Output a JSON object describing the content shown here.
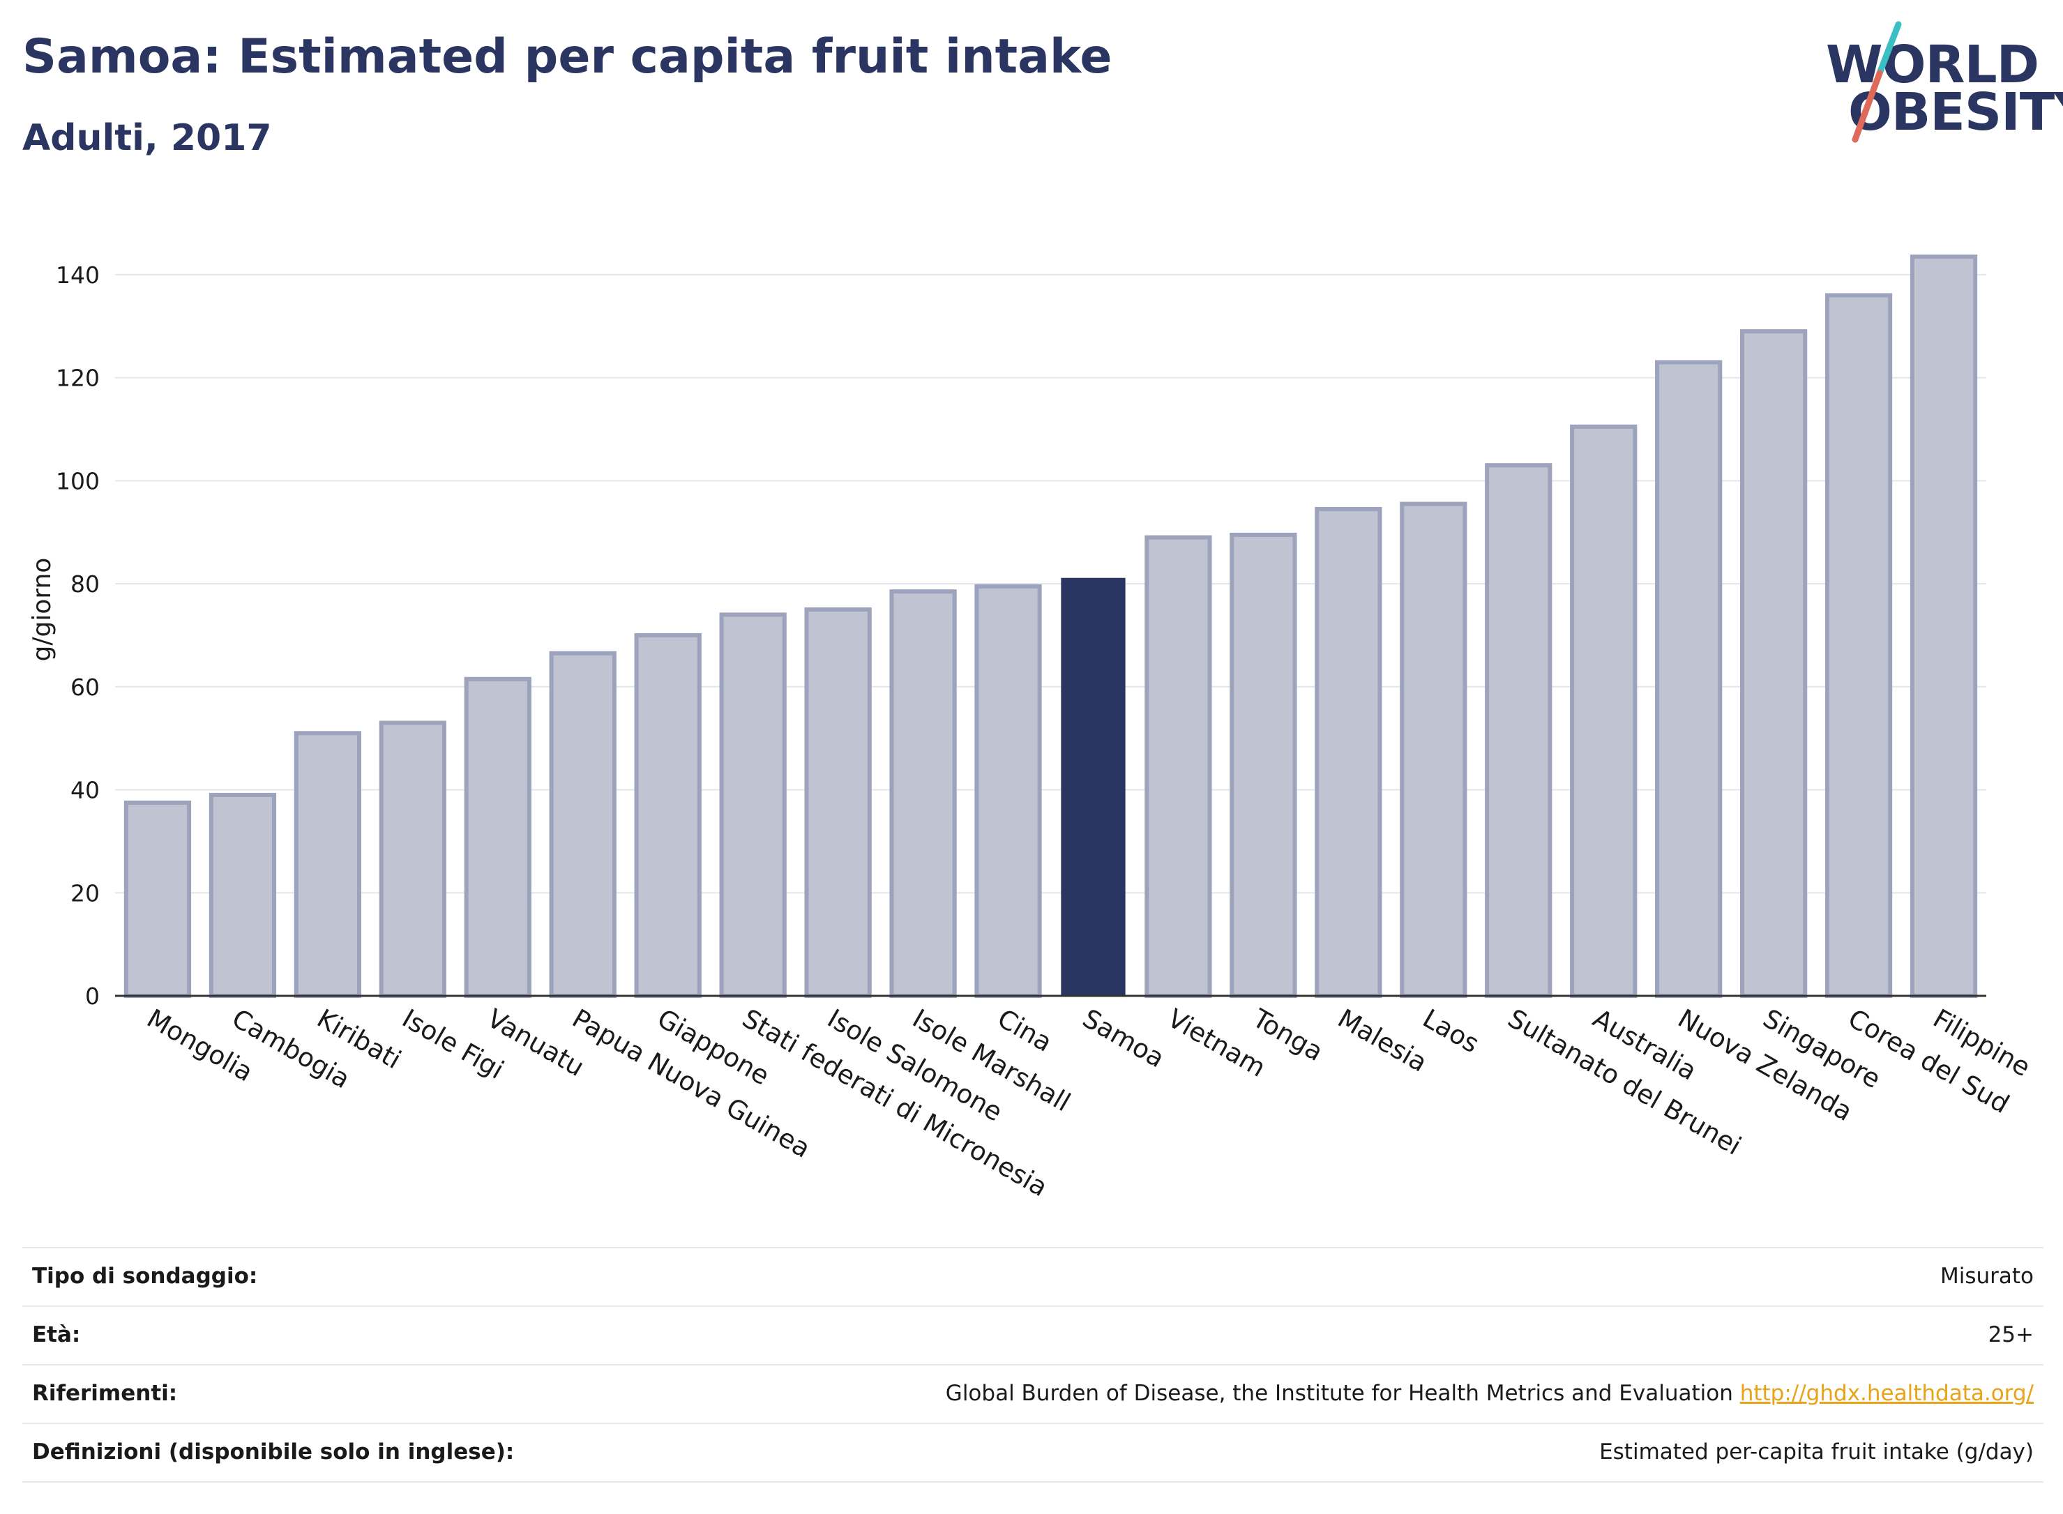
{
  "header": {
    "title": "Samoa: Estimated per capita fruit intake",
    "subtitle": "Adulti, 2017"
  },
  "logo": {
    "line1": "WORLD",
    "line2": "OBESITY",
    "accent_teal": "#3bbfc4",
    "accent_red": "#e06a5a"
  },
  "chart_data": {
    "type": "bar",
    "ylabel": "g/giorno",
    "ylim": [
      0,
      150
    ],
    "yticks": [
      0,
      20,
      40,
      60,
      80,
      100,
      120,
      140
    ],
    "grid": true,
    "highlight": "Samoa",
    "colors": {
      "bar": "#bfc3d2",
      "bar_edge": "#9da3bc",
      "highlight": "#2a3561"
    },
    "categories": [
      "Mongolia",
      "Cambogia",
      "Kiribati",
      "Isole Figi",
      "Vanuatu",
      "Papua Nuova Guinea",
      "Giappone",
      "Stati federati di Micronesia",
      "Isole Salomone",
      "Isole Marshall",
      "Cina",
      "Samoa",
      "Vietnam",
      "Tonga",
      "Malesia",
      "Laos",
      "Sultanato del Brunei",
      "Australia",
      "Nuova Zelanda",
      "Singapore",
      "Corea del Sud",
      "Filippine"
    ],
    "values": [
      37.5,
      39,
      51,
      53,
      61.5,
      66.5,
      70,
      74,
      75,
      78.5,
      79.5,
      81,
      89,
      89.5,
      94.5,
      95.5,
      103,
      110.5,
      123,
      129,
      136,
      143.5
    ]
  },
  "info": [
    {
      "label": "Tipo di sondaggio:",
      "value": "Misurato"
    },
    {
      "label": "Età:",
      "value": "25+"
    },
    {
      "label": "Riferimenti:",
      "value": "Global Burden of Disease, the Institute for Health Metrics and Evaluation",
      "link": "http://ghdx.healthdata.org/"
    },
    {
      "label": "Definizioni (disponibile solo in inglese):",
      "value": "Estimated per-capita fruit intake (g/day)"
    }
  ]
}
